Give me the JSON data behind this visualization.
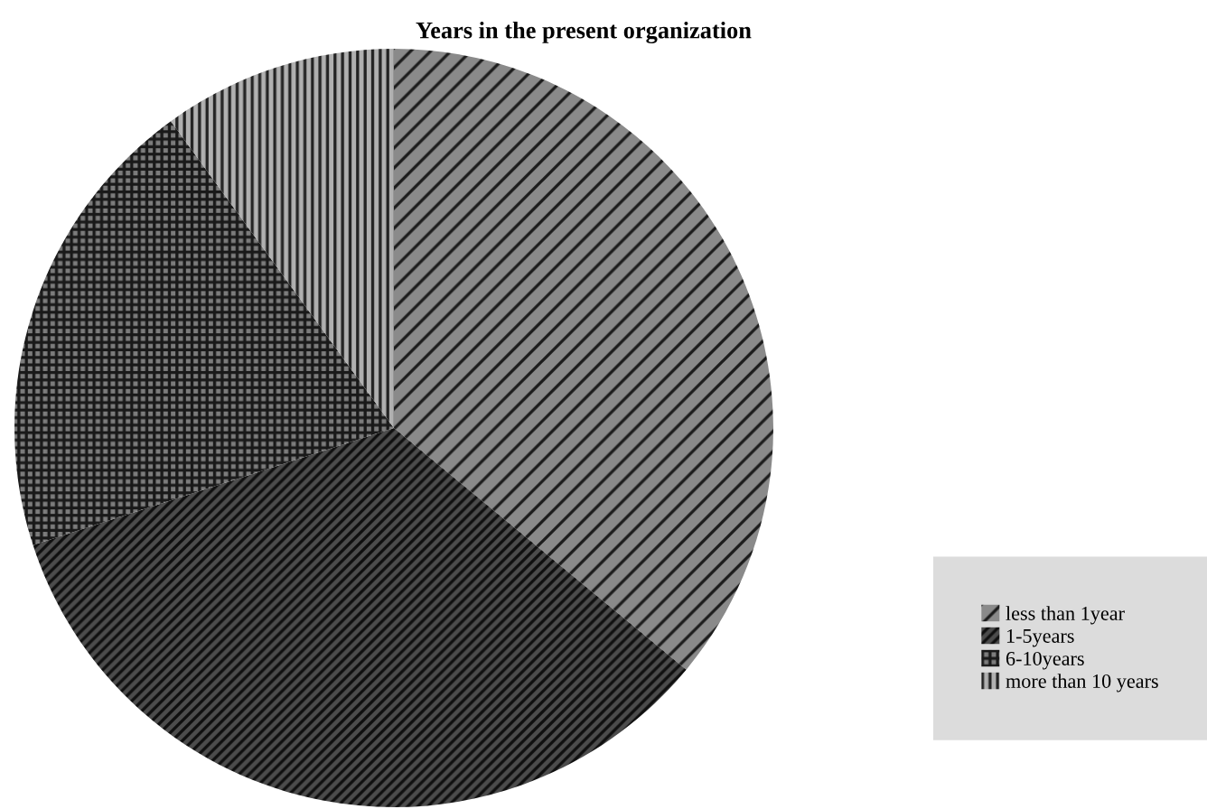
{
  "chart_data": {
    "type": "pie",
    "title": "Years in the present organization",
    "categories": [
      "less than 1year",
      "1-5years",
      "6-10years",
      "more than 10 years"
    ],
    "values": [
      36,
      34,
      20,
      10
    ],
    "colors": [
      "#8a8a8a",
      "#4c4c4c",
      "#7c7c7c",
      "#b0b0b0"
    ],
    "legend": "bottom right"
  }
}
